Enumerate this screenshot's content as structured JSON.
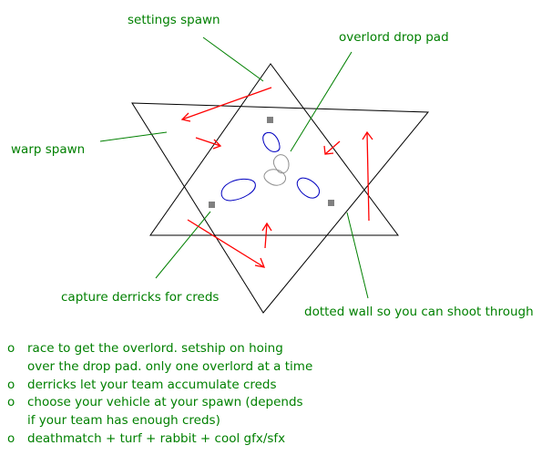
{
  "labels": {
    "settings_spawn": "settings spawn",
    "overlord_drop_pad": "overlord drop pad",
    "warp_spawn": "warp spawn",
    "capture_derricks": "capture derricks for creds",
    "dotted_wall": "dotted wall so you can shoot through"
  },
  "notes": [
    {
      "bullet": "o",
      "lines": [
        "race to get the overlord. setship on hoing",
        "over the drop pad. only one overlord at a time"
      ]
    },
    {
      "bullet": "o",
      "lines": [
        "derricks let your team accumulate creds"
      ]
    },
    {
      "bullet": "o",
      "lines": [
        "choose your vehicle at your spawn (depends",
        "if your team has enough creds)"
      ]
    },
    {
      "bullet": "o",
      "lines": [
        "deathmatch + turf + rabbit + cool gfx/sfx"
      ]
    }
  ],
  "colors": {
    "label_text": "#008000",
    "leader_line": "#008000",
    "arrow": "#ff0000",
    "outline": "#000000",
    "blob": "#0000c0",
    "center_blob": "#909090",
    "marker": "#808080"
  }
}
